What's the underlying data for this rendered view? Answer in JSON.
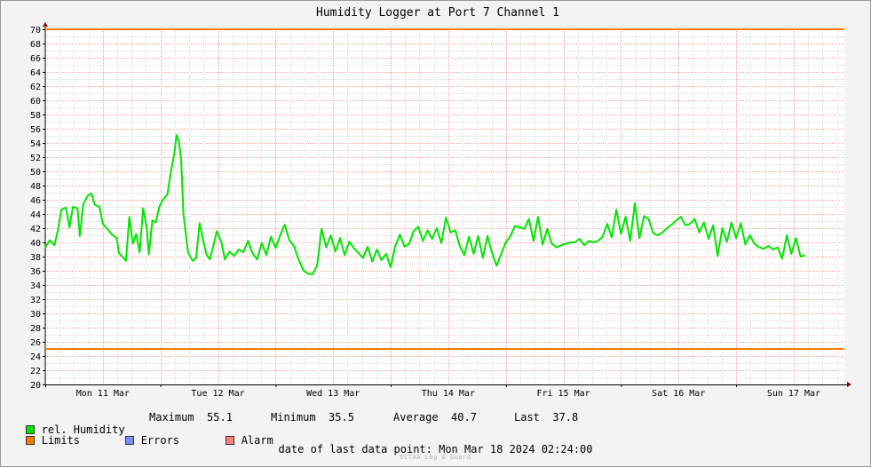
{
  "chart_data": {
    "type": "line",
    "title": "Humidity Logger at Port 7 Channel 1",
    "ylim": [
      20,
      70
    ],
    "y_ticks": [
      20,
      22,
      24,
      26,
      28,
      30,
      32,
      34,
      36,
      38,
      40,
      42,
      44,
      46,
      48,
      50,
      52,
      54,
      56,
      58,
      60,
      62,
      64,
      66,
      68,
      70
    ],
    "x_tick_labels": [
      "Mon 11 Mar",
      "Tue 12 Mar",
      "Wed 13 Mar",
      "Thu 14 Mar",
      "Fri 15 Mar",
      "Sat 16 Mar",
      "Sun 17 Mar"
    ],
    "x_range_days": [
      0,
      6.94
    ],
    "grid": true,
    "limits": [
      70,
      25
    ],
    "series": [
      {
        "name": "rel. Humidity",
        "color": "#00e600",
        "points": [
          [
            0.0,
            39.3
          ],
          [
            0.04,
            40.3
          ],
          [
            0.08,
            39.6
          ],
          [
            0.11,
            41.8
          ],
          [
            0.14,
            44.6
          ],
          [
            0.18,
            44.9
          ],
          [
            0.21,
            42.1
          ],
          [
            0.24,
            45.0
          ],
          [
            0.28,
            44.8
          ],
          [
            0.3,
            40.9
          ],
          [
            0.33,
            45.4
          ],
          [
            0.37,
            46.6
          ],
          [
            0.4,
            46.9
          ],
          [
            0.43,
            45.3
          ],
          [
            0.47,
            45.0
          ],
          [
            0.5,
            42.6
          ],
          [
            0.54,
            41.9
          ],
          [
            0.58,
            41.1
          ],
          [
            0.62,
            40.6
          ],
          [
            0.64,
            38.5
          ],
          [
            0.67,
            38.0
          ],
          [
            0.7,
            37.4
          ],
          [
            0.73,
            43.6
          ],
          [
            0.76,
            39.8
          ],
          [
            0.79,
            41.2
          ],
          [
            0.82,
            38.6
          ],
          [
            0.85,
            44.8
          ],
          [
            0.88,
            42.2
          ],
          [
            0.9,
            38.3
          ],
          [
            0.93,
            43.1
          ],
          [
            0.96,
            42.8
          ],
          [
            0.99,
            45.0
          ],
          [
            1.02,
            46.0
          ],
          [
            1.06,
            46.7
          ],
          [
            1.09,
            49.9
          ],
          [
            1.12,
            52.4
          ],
          [
            1.14,
            55.1
          ],
          [
            1.16,
            54.3
          ],
          [
            1.18,
            51.7
          ],
          [
            1.2,
            44.0
          ],
          [
            1.22,
            41.3
          ],
          [
            1.24,
            38.6
          ],
          [
            1.28,
            37.4
          ],
          [
            1.31,
            37.8
          ],
          [
            1.34,
            42.7
          ],
          [
            1.37,
            40.4
          ],
          [
            1.4,
            38.3
          ],
          [
            1.43,
            37.6
          ],
          [
            1.46,
            39.5
          ],
          [
            1.49,
            41.6
          ],
          [
            1.53,
            40.0
          ],
          [
            1.56,
            37.6
          ],
          [
            1.6,
            38.7
          ],
          [
            1.64,
            38.1
          ],
          [
            1.68,
            39.0
          ],
          [
            1.72,
            38.6
          ],
          [
            1.76,
            40.2
          ],
          [
            1.8,
            38.5
          ],
          [
            1.84,
            37.6
          ],
          [
            1.88,
            39.9
          ],
          [
            1.92,
            38.2
          ],
          [
            1.96,
            40.8
          ],
          [
            2.0,
            39.2
          ],
          [
            2.04,
            41.0
          ],
          [
            2.08,
            42.5
          ],
          [
            2.12,
            40.3
          ],
          [
            2.16,
            39.5
          ],
          [
            2.2,
            37.6
          ],
          [
            2.24,
            36.1
          ],
          [
            2.28,
            35.6
          ],
          [
            2.32,
            35.5
          ],
          [
            2.36,
            36.7
          ],
          [
            2.4,
            41.9
          ],
          [
            2.44,
            39.3
          ],
          [
            2.48,
            41.0
          ],
          [
            2.52,
            38.7
          ],
          [
            2.56,
            40.6
          ],
          [
            2.6,
            38.2
          ],
          [
            2.64,
            40.1
          ],
          [
            2.68,
            39.2
          ],
          [
            2.72,
            38.5
          ],
          [
            2.76,
            37.8
          ],
          [
            2.8,
            39.4
          ],
          [
            2.84,
            37.3
          ],
          [
            2.88,
            39.0
          ],
          [
            2.92,
            37.5
          ],
          [
            2.96,
            38.4
          ],
          [
            3.0,
            36.5
          ],
          [
            3.04,
            39.5
          ],
          [
            3.08,
            41.1
          ],
          [
            3.12,
            39.4
          ],
          [
            3.16,
            39.8
          ],
          [
            3.2,
            41.6
          ],
          [
            3.24,
            42.2
          ],
          [
            3.28,
            40.2
          ],
          [
            3.32,
            41.7
          ],
          [
            3.36,
            40.5
          ],
          [
            3.4,
            42.0
          ],
          [
            3.44,
            39.9
          ],
          [
            3.48,
            43.5
          ],
          [
            3.52,
            41.4
          ],
          [
            3.56,
            41.7
          ],
          [
            3.6,
            39.5
          ],
          [
            3.64,
            38.2
          ],
          [
            3.68,
            40.8
          ],
          [
            3.72,
            38.4
          ],
          [
            3.76,
            40.9
          ],
          [
            3.8,
            37.8
          ],
          [
            3.84,
            40.9
          ],
          [
            3.88,
            38.5
          ],
          [
            3.92,
            36.7
          ],
          [
            3.96,
            38.4
          ],
          [
            4.0,
            40.0
          ],
          [
            4.04,
            40.9
          ],
          [
            4.08,
            42.3
          ],
          [
            4.12,
            42.1
          ],
          [
            4.16,
            41.9
          ],
          [
            4.2,
            43.3
          ],
          [
            4.24,
            40.2
          ],
          [
            4.28,
            43.6
          ],
          [
            4.32,
            39.7
          ],
          [
            4.36,
            41.9
          ],
          [
            4.4,
            39.8
          ],
          [
            4.44,
            39.3
          ],
          [
            4.48,
            39.6
          ],
          [
            4.52,
            39.8
          ],
          [
            4.56,
            40.0
          ],
          [
            4.6,
            40.0
          ],
          [
            4.64,
            40.5
          ],
          [
            4.68,
            39.6
          ],
          [
            4.72,
            40.2
          ],
          [
            4.76,
            40.0
          ],
          [
            4.8,
            40.2
          ],
          [
            4.84,
            40.8
          ],
          [
            4.88,
            42.6
          ],
          [
            4.92,
            40.7
          ],
          [
            4.96,
            44.6
          ],
          [
            5.0,
            41.2
          ],
          [
            5.04,
            43.6
          ],
          [
            5.08,
            40.2
          ],
          [
            5.12,
            45.5
          ],
          [
            5.16,
            40.6
          ],
          [
            5.2,
            43.7
          ],
          [
            5.24,
            43.3
          ],
          [
            5.28,
            41.3
          ],
          [
            5.32,
            41.0
          ],
          [
            5.36,
            41.4
          ],
          [
            5.4,
            42.0
          ],
          [
            5.44,
            42.5
          ],
          [
            5.48,
            43.1
          ],
          [
            5.52,
            43.6
          ],
          [
            5.56,
            42.4
          ],
          [
            5.6,
            42.6
          ],
          [
            5.64,
            43.3
          ],
          [
            5.68,
            41.4
          ],
          [
            5.72,
            42.8
          ],
          [
            5.76,
            40.5
          ],
          [
            5.8,
            42.4
          ],
          [
            5.84,
            38.1
          ],
          [
            5.88,
            42.0
          ],
          [
            5.92,
            40.1
          ],
          [
            5.96,
            42.8
          ],
          [
            6.0,
            40.6
          ],
          [
            6.04,
            42.7
          ],
          [
            6.08,
            39.7
          ],
          [
            6.12,
            41.0
          ],
          [
            6.16,
            39.8
          ],
          [
            6.2,
            39.3
          ],
          [
            6.24,
            39.1
          ],
          [
            6.28,
            39.5
          ],
          [
            6.32,
            39.0
          ],
          [
            6.36,
            39.3
          ],
          [
            6.4,
            37.7
          ],
          [
            6.44,
            41.0
          ],
          [
            6.48,
            38.4
          ],
          [
            6.52,
            40.6
          ],
          [
            6.56,
            38.0
          ],
          [
            6.6,
            38.2
          ]
        ]
      }
    ]
  },
  "legend": {
    "items": [
      {
        "label": "rel. Humidity",
        "color": "#00e600"
      },
      {
        "label": "Limits",
        "color": "#ff7a00"
      },
      {
        "label": "Errors",
        "color": "#7a8cff"
      },
      {
        "label": "Alarm",
        "color": "#ff7f7f"
      }
    ],
    "stats": {
      "maximum_label": "Maximum",
      "maximum_value": "55.1",
      "minimum_label": "Minimum",
      "minimum_value": "35.5",
      "average_label": "Average",
      "average_value": "40.7",
      "last_label": "Last",
      "last_value": "37.8"
    }
  },
  "footer": {
    "last_point_label": "date of last data point:",
    "last_point_value": "Mon Mar 18 2024 02:24:00",
    "brand": "OCTAA Log & Guard"
  }
}
